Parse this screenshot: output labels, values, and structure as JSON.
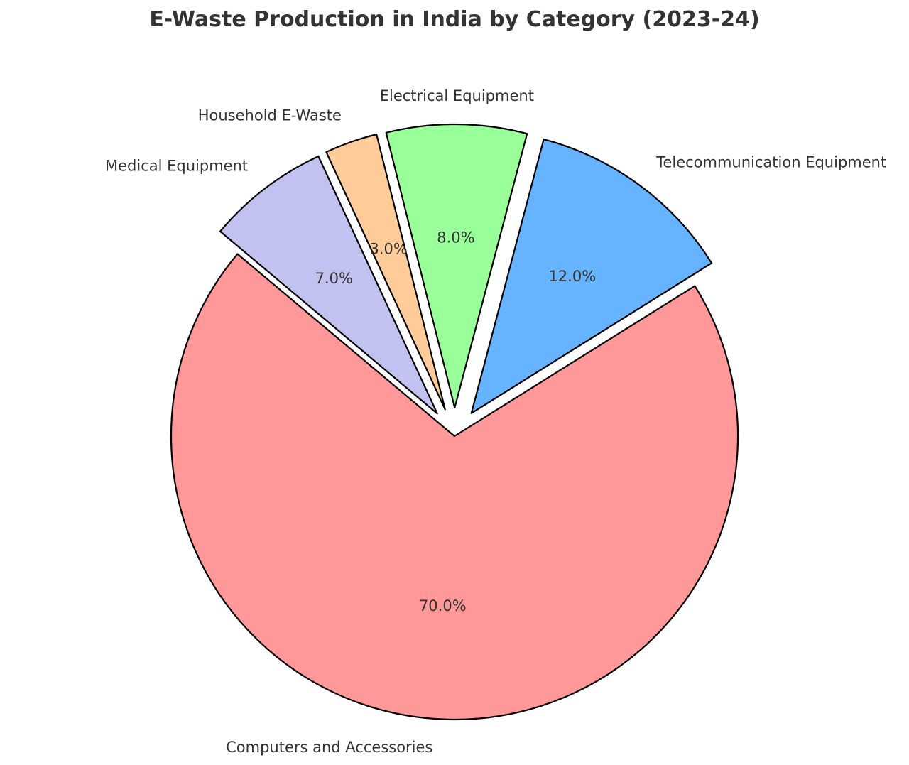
{
  "chart_data": {
    "type": "pie",
    "title": "E-Waste Production in India by Category (2023-24)",
    "categories": [
      "Computers and Accessories",
      "Telecommunication Equipment",
      "Electrical Equipment",
      "Household E-Waste",
      "Medical Equipment"
    ],
    "values": [
      70.0,
      12.0,
      8.0,
      3.0,
      7.0
    ],
    "value_labels": [
      "70.0%",
      "12.0%",
      "8.0%",
      "3.0%",
      "7.0%"
    ],
    "colors": [
      "#ff9999",
      "#66b3ff",
      "#99ff99",
      "#ffcc99",
      "#c2c2f0"
    ],
    "exploded": [
      false,
      true,
      true,
      true,
      true
    ],
    "start_angle_deg": 140,
    "direction": "counterclockwise",
    "edge_color": "#000000",
    "legend": "none"
  }
}
